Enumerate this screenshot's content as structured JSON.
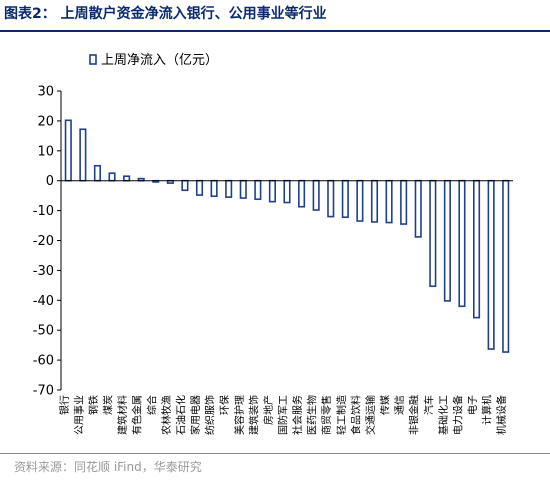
{
  "figure_title": "图表2：  上周散户资金净流入银行、公用事业等行业",
  "source": "资料来源：同花顺 iFind，华泰研究",
  "colors": {
    "title": "#0b2a6e",
    "bar_stroke": "#1f3f8f",
    "bar_fill": "#ffffff",
    "axis": "#000000"
  },
  "chart_data": {
    "type": "bar",
    "title": "",
    "xlabel": "",
    "ylabel": "",
    "ylim": [
      -70,
      30
    ],
    "yticks": [
      30,
      20,
      10,
      0,
      -10,
      -20,
      -30,
      -40,
      -50,
      -60,
      -70
    ],
    "grid": false,
    "legend": "top-left",
    "categories": [
      "银行",
      "公用事业",
      "钢铁",
      "煤炭",
      "建筑材料",
      "有色金属",
      "综合",
      "农林牧渔",
      "石油石化",
      "家用电器",
      "纺织服饰",
      "环保",
      "美容护理",
      "建筑装饰",
      "房地产",
      "国防军工",
      "社会服务",
      "医药生物",
      "商贸零售",
      "轻工制造",
      "食品饮料",
      "交通运输",
      "传媒",
      "通信",
      "非银金融",
      "汽车",
      "基础化工",
      "电力设备",
      "电子",
      "计算机",
      "机械设备"
    ],
    "series": [
      {
        "name": "上周净流入（亿元）",
        "values": [
          20.2,
          17.2,
          5.0,
          2.5,
          1.5,
          0.7,
          -0.4,
          -0.8,
          -3.2,
          -4.8,
          -5.2,
          -5.5,
          -5.8,
          -6.2,
          -7.0,
          -7.3,
          -8.7,
          -9.8,
          -12.0,
          -12.2,
          -13.5,
          -13.8,
          -14.0,
          -14.5,
          -18.8,
          -35.3,
          -40.2,
          -42.0,
          -45.8,
          -56.3,
          -57.3
        ]
      }
    ]
  }
}
